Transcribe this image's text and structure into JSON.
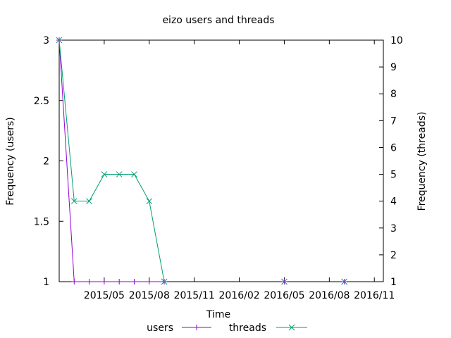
{
  "chart_data": {
    "type": "line",
    "title": "eizo users and threads",
    "xlabel": "Time",
    "ylabel": "Frequency (users)",
    "y2label": "Frequency (threads)",
    "x_ticks": [
      "2015/05",
      "2015/08",
      "2015/11",
      "2016/02",
      "2016/05",
      "2016/08",
      "2016/11"
    ],
    "x_tick_months": [
      4,
      7,
      10,
      13,
      16,
      19,
      22
    ],
    "xlim_months": [
      1.0,
      22.6
    ],
    "ylim": [
      1,
      3
    ],
    "y_ticks": [
      "1",
      "1.5",
      "2",
      "2.5",
      "3"
    ],
    "y_tick_values": [
      1,
      1.5,
      2,
      2.5,
      3
    ],
    "y2lim": [
      1,
      10
    ],
    "y2_ticks": [
      "1",
      "2",
      "3",
      "4",
      "5",
      "6",
      "7",
      "8",
      "9",
      "10"
    ],
    "y2_tick_values": [
      1,
      2,
      3,
      4,
      5,
      6,
      7,
      8,
      9,
      10
    ],
    "legend_position": "bottom",
    "series": [
      {
        "name": "users",
        "axis": "left",
        "color": "#9400d3",
        "marker": "plus",
        "x_months": [
          1,
          2,
          3,
          4,
          5,
          6,
          7,
          8,
          16,
          20
        ],
        "x": [
          "2015/02",
          "2015/03",
          "2015/04",
          "2015/05",
          "2015/06",
          "2015/07",
          "2015/08",
          "2015/09",
          "2016/05",
          "2016/09"
        ],
        "values": [
          3,
          1,
          1,
          1,
          1,
          1,
          1,
          1,
          1,
          1
        ]
      },
      {
        "name": "threads",
        "axis": "right",
        "color": "#009e73",
        "marker": "x",
        "x_months": [
          1,
          2,
          3,
          4,
          5,
          6,
          7,
          8,
          16,
          20
        ],
        "x": [
          "2015/02",
          "2015/03",
          "2015/04",
          "2015/05",
          "2015/06",
          "2015/07",
          "2015/08",
          "2015/09",
          "2016/05",
          "2016/09"
        ],
        "values": [
          10,
          4,
          4,
          5,
          5,
          5,
          4,
          1,
          1,
          1
        ]
      }
    ]
  }
}
